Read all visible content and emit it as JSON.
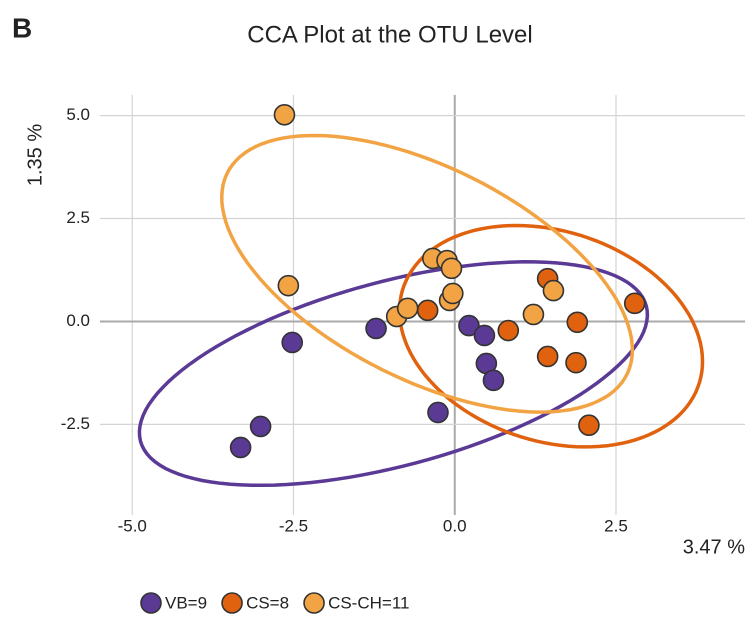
{
  "chart_data": {
    "type": "scatter",
    "panel_label": "B",
    "title": "CCA Plot at the OTU Level",
    "xlabel": "3.47 %",
    "ylabel": "1.35 %",
    "xlim": [
      -5.5,
      4.5
    ],
    "ylim": [
      -4.7,
      5.5
    ],
    "xticks": [
      {
        "value": -5,
        "label": "-5.0"
      },
      -2.5,
      {
        "value": 0,
        "label": "0.0"
      },
      2.5
    ],
    "yticks": [
      {
        "value": 5,
        "label": "5.0"
      },
      2.5,
      {
        "value": 0,
        "label": "0.0"
      },
      -2.5
    ],
    "grid": true,
    "legend": "bottom",
    "series": [
      {
        "name": "VB=9",
        "color": "#5b3a96",
        "x": [
          -1.22,
          -2.52,
          -3.01,
          -3.32,
          -0.26,
          0.22,
          0.46,
          0.49,
          0.6
        ],
        "values": [
          -0.17,
          -0.51,
          -2.55,
          -3.06,
          -2.21,
          -0.1,
          -0.34,
          -1.02,
          -1.43
        ]
      },
      {
        "name": "CS=8",
        "color": "#e0620f",
        "x": [
          -0.42,
          0.83,
          1.44,
          1.44,
          1.9,
          1.88,
          2.08,
          2.79
        ],
        "values": [
          0.27,
          -0.22,
          1.04,
          -0.85,
          -0.02,
          -1.0,
          -2.52,
          0.44
        ]
      },
      {
        "name": "CS-CH=11",
        "color": "#f2a444",
        "x": [
          -2.64,
          -2.58,
          -0.9,
          -0.73,
          -0.34,
          -0.12,
          -0.05,
          -0.08,
          -0.03,
          1.22,
          1.53
        ],
        "values": [
          5.02,
          0.87,
          0.12,
          0.32,
          1.53,
          1.48,
          1.29,
          0.51,
          0.68,
          0.17,
          0.75
        ]
      }
    ]
  }
}
